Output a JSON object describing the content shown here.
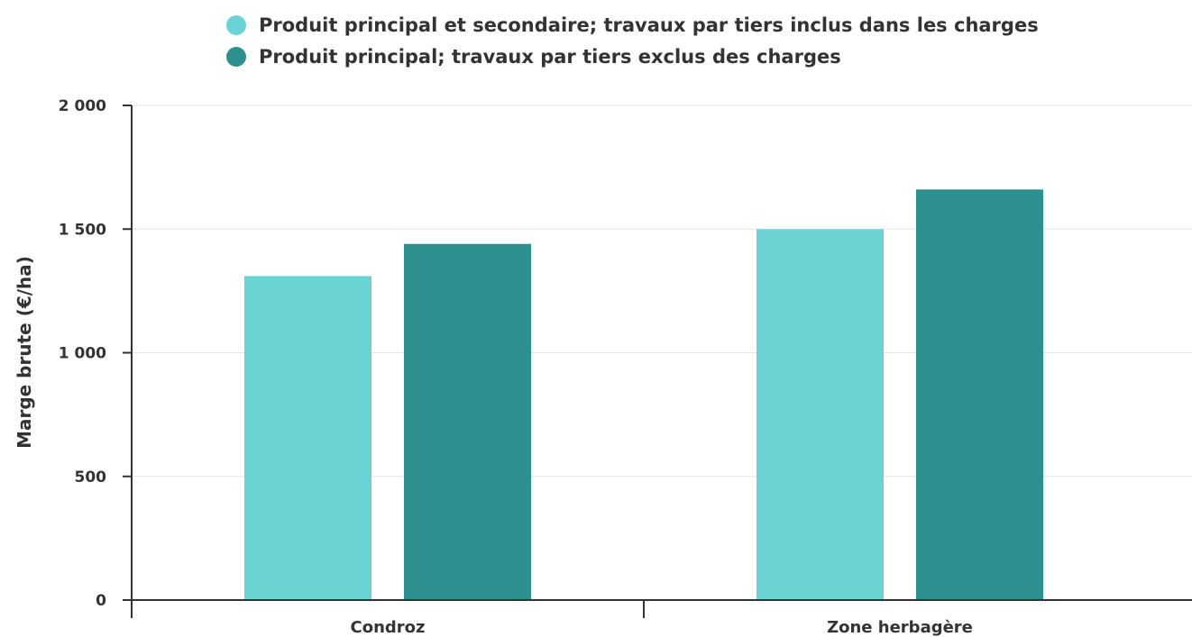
{
  "chart_data": {
    "type": "bar",
    "categories": [
      "Condroz",
      "Zone herbagère"
    ],
    "series": [
      {
        "name": "Produit principal et secondaire; travaux par tiers inclus dans les charges",
        "color": "#6BD3D3",
        "values": [
          1310,
          1500
        ]
      },
      {
        "name": "Produit principal; travaux par tiers exclus des charges",
        "color": "#2E8F8F",
        "values": [
          1440,
          1660
        ]
      }
    ],
    "title": "",
    "xlabel": "",
    "ylabel": "Marge brute (€/ha)",
    "ylim": [
      0,
      2000
    ],
    "yticks": [
      {
        "value": 0,
        "label": "0"
      },
      {
        "value": 500,
        "label": "500"
      },
      {
        "value": 1000,
        "label": "1 000"
      },
      {
        "value": 1500,
        "label": "1 500"
      },
      {
        "value": 2000,
        "label": "2 000"
      }
    ],
    "grid": true,
    "legend_position": "top"
  }
}
